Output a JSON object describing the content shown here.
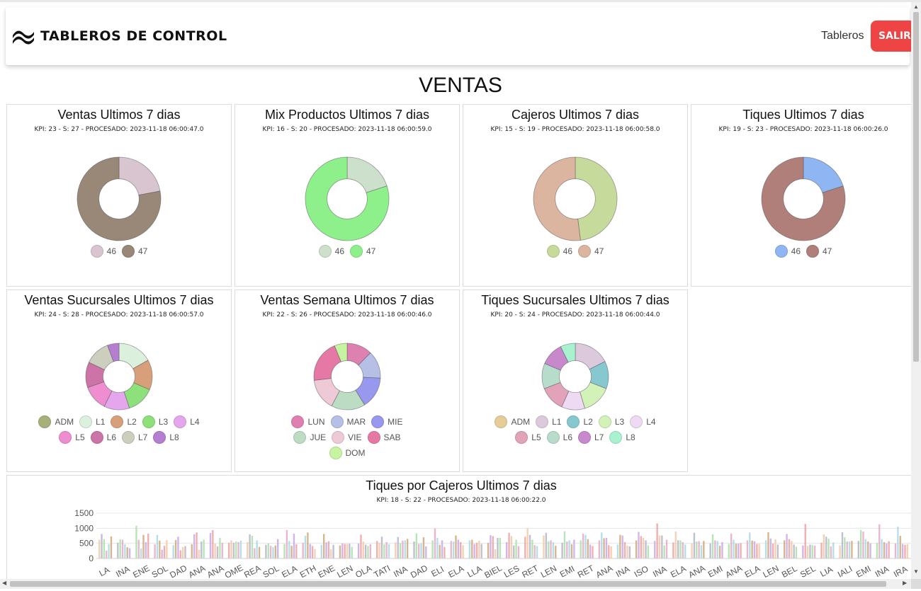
{
  "header": {
    "brand_title": "TABLEROS DE CONTROL",
    "nav_link": "Tableros",
    "logout_label": "SALIR"
  },
  "page_title": "VENTAS",
  "panels": [
    {
      "title": "Ventas Ultimos 7 dias",
      "subtitle": "KPI: 23 - S: 27 - PROCESADO: 2023-11-18 06:00:47.0",
      "chart_data": {
        "type": "pie",
        "labels": [
          "46",
          "47"
        ],
        "values": [
          22,
          78
        ],
        "colors": [
          "#d8c5d0",
          "#998878"
        ]
      }
    },
    {
      "title": "Mix Productos Ultimos 7 dias",
      "subtitle": "KPI: 16 - S: 20 - PROCESADO: 2023-11-18 06:00:59.0",
      "chart_data": {
        "type": "pie",
        "labels": [
          "46",
          "47"
        ],
        "values": [
          20,
          80
        ],
        "colors": [
          "#cde0cc",
          "#8ef08a"
        ]
      }
    },
    {
      "title": "Cajeros Ultimos 7 dias",
      "subtitle": "KPI: 15 - S: 19 - PROCESADO: 2023-11-18 06:00:58.0",
      "chart_data": {
        "type": "pie",
        "labels": [
          "46",
          "47"
        ],
        "values": [
          48,
          52
        ],
        "colors": [
          "#c6da9b",
          "#dcb5a0"
        ]
      }
    },
    {
      "title": "Tiques Ultimos 7 dias",
      "subtitle": "KPI: 19 - S: 23 - PROCESADO: 2023-11-18 06:00:26.0",
      "chart_data": {
        "type": "pie",
        "labels": [
          "46",
          "47"
        ],
        "values": [
          20,
          80
        ],
        "colors": [
          "#8fb6f2",
          "#b07f7a"
        ]
      }
    },
    {
      "title": "Ventas Sucursales Ultimos 7 dias",
      "subtitle": "KPI: 24 - S: 28 - PROCESADO: 2023-11-18 06:00:57.0",
      "chart_data": {
        "type": "pie",
        "labels": [
          "ADM",
          "L1",
          "L2",
          "L3",
          "L4",
          "L5",
          "L6",
          "L7",
          "L8"
        ],
        "values": [
          0,
          15,
          13,
          12,
          11,
          11,
          11,
          11,
          5
        ],
        "colors": [
          "#a8b07a",
          "#dcf0de",
          "#d8a07a",
          "#8ee07a",
          "#e6a6ee",
          "#ee8ed0",
          "#cc74a8",
          "#cccfbe",
          "#b67ed0"
        ]
      }
    },
    {
      "title": "Ventas Semana Ultimos 7 dias",
      "subtitle": "KPI: 22 - S: 26 - PROCESADO: 2023-11-18 06:00:46.0",
      "chart_data": {
        "type": "pie",
        "labels": [
          "LUN",
          "MAR",
          "MIE",
          "JUE",
          "VIE",
          "SAB",
          "DOM"
        ],
        "values": [
          12,
          13,
          15,
          16,
          15,
          20,
          6
        ],
        "colors": [
          "#de80b0",
          "#b6c0e6",
          "#9898ee",
          "#bcdcc4",
          "#eecad6",
          "#e678a6",
          "#c6f4a0"
        ]
      }
    },
    {
      "title": "Tiques Sucursales Ultimos 7 dias",
      "subtitle": "KPI: 20 - S: 24 - PROCESADO: 2023-11-18 06:00:44.0",
      "chart_data": {
        "type": "pie",
        "labels": [
          "ADM",
          "L1",
          "L2",
          "L3",
          "L4",
          "L5",
          "L6",
          "L7",
          "L8"
        ],
        "values": [
          0,
          17,
          13,
          14,
          11,
          12,
          12,
          11,
          7
        ],
        "colors": [
          "#e6cc98",
          "#dccadc",
          "#86c8d0",
          "#d2f2b8",
          "#eedaf2",
          "#e2a2ba",
          "#b8dccc",
          "#c888cc",
          "#a8f2d0"
        ]
      }
    }
  ],
  "bar_panel": {
    "title": "Tiques por Cajeros Ultimos 7 dias",
    "subtitle": "KPI: 18 - S: 22 - PROCESADO: 2023-11-18 06:00:22.0",
    "chart_data": {
      "type": "bar",
      "ylim": [
        0,
        1500
      ],
      "yticks": [
        0,
        500,
        1000,
        1500
      ],
      "xlabels": [
        "LA",
        "INA",
        "ENE",
        "SOL",
        "DAD",
        "ANA",
        "ANA",
        "OME",
        "REA",
        "SOL",
        "ELA",
        "ETH",
        "ENE",
        "LEN",
        "OLA",
        "TATI",
        "INA",
        "DAD",
        "ELI",
        "ELA",
        "LLA",
        "BIEL",
        "LES",
        "RET",
        "LEN",
        "EMI",
        "RET",
        "ANA",
        "INA",
        "ISO",
        "INA",
        "ELA",
        "ANA",
        "EMI",
        "ANA",
        "ELA",
        "LEN",
        "BEL",
        "SEL",
        "LIA",
        "IALI",
        "EMI",
        "INA",
        "IRA"
      ],
      "series": [
        {
          "values": [
            620,
            520,
            1080,
            470,
            440,
            470,
            840,
            520,
            540,
            450,
            480,
            520,
            450,
            430,
            490,
            580,
            530,
            560,
            600,
            580,
            600,
            520,
            540,
            720,
            760,
            520,
            600,
            600,
            460,
            600,
            580,
            530,
            500,
            500,
            480,
            600,
            600,
            600,
            430,
            520,
            430,
            580,
            520,
            500
          ]
        },
        {
          "values": [
            810,
            630,
            620,
            780,
            610,
            800,
            940,
            600,
            800,
            500,
            940,
            750,
            810,
            500,
            790,
            520,
            710,
            830,
            990,
            560,
            620,
            770,
            850,
            1000,
            850,
            900,
            820,
            860,
            780,
            880,
            1160,
            890,
            850,
            800,
            820,
            860,
            870,
            810,
            1140,
            800,
            870,
            940,
            1130,
            1050
          ]
        },
        {
          "values": [
            640,
            620,
            330,
            590,
            720,
            860,
            490,
            520,
            750,
            420,
            580,
            860,
            530,
            480,
            560,
            720,
            510,
            480,
            680,
            760,
            480,
            740,
            740,
            780,
            570,
            560,
            780,
            670,
            760,
            740,
            760,
            600,
            560,
            600,
            620,
            590,
            660,
            640,
            420,
            720,
            700,
            890,
            640,
            750
          ]
        },
        {
          "values": [
            260,
            470,
            780,
            290,
            270,
            280,
            400,
            560,
            340,
            380,
            420,
            480,
            570,
            480,
            460,
            470,
            590,
            500,
            450,
            620,
            520,
            300,
            430,
            620,
            600,
            600,
            640,
            680,
            540,
            680,
            760,
            600,
            570,
            580,
            490,
            570,
            490,
            580,
            460,
            650,
            560,
            640,
            540,
            480
          ]
        },
        {
          "values": [
            470,
            370,
            540,
            420,
            380,
            560,
            680,
            540,
            600,
            430,
            820,
            410,
            300,
            490,
            410,
            540,
            600,
            700,
            600,
            540,
            590,
            680,
            620,
            440,
            540,
            470,
            460,
            440,
            420,
            600,
            430,
            540,
            440,
            420,
            490,
            480,
            630,
            460,
            440,
            400,
            560,
            560,
            500,
            450
          ]
        },
        {
          "values": [
            730,
            340,
            820,
            610,
            410,
            620,
            520,
            590,
            380,
            640,
            470,
            310,
            450,
            380,
            470,
            470,
            650,
            400,
            380,
            440,
            480,
            680,
            410,
            410,
            420,
            620,
            410,
            400,
            400,
            430,
            620,
            460,
            580,
            540,
            510,
            480,
            460,
            390,
            420,
            530,
            580,
            500,
            570,
            470
          ]
        }
      ],
      "colors": [
        "#f2c8a8",
        "#b4b4c8",
        "#a8e0a8",
        "#e8a8c8",
        "#a8d8e8",
        "#d0a878",
        "#c8a8e8",
        "#f0a0a0"
      ]
    }
  }
}
